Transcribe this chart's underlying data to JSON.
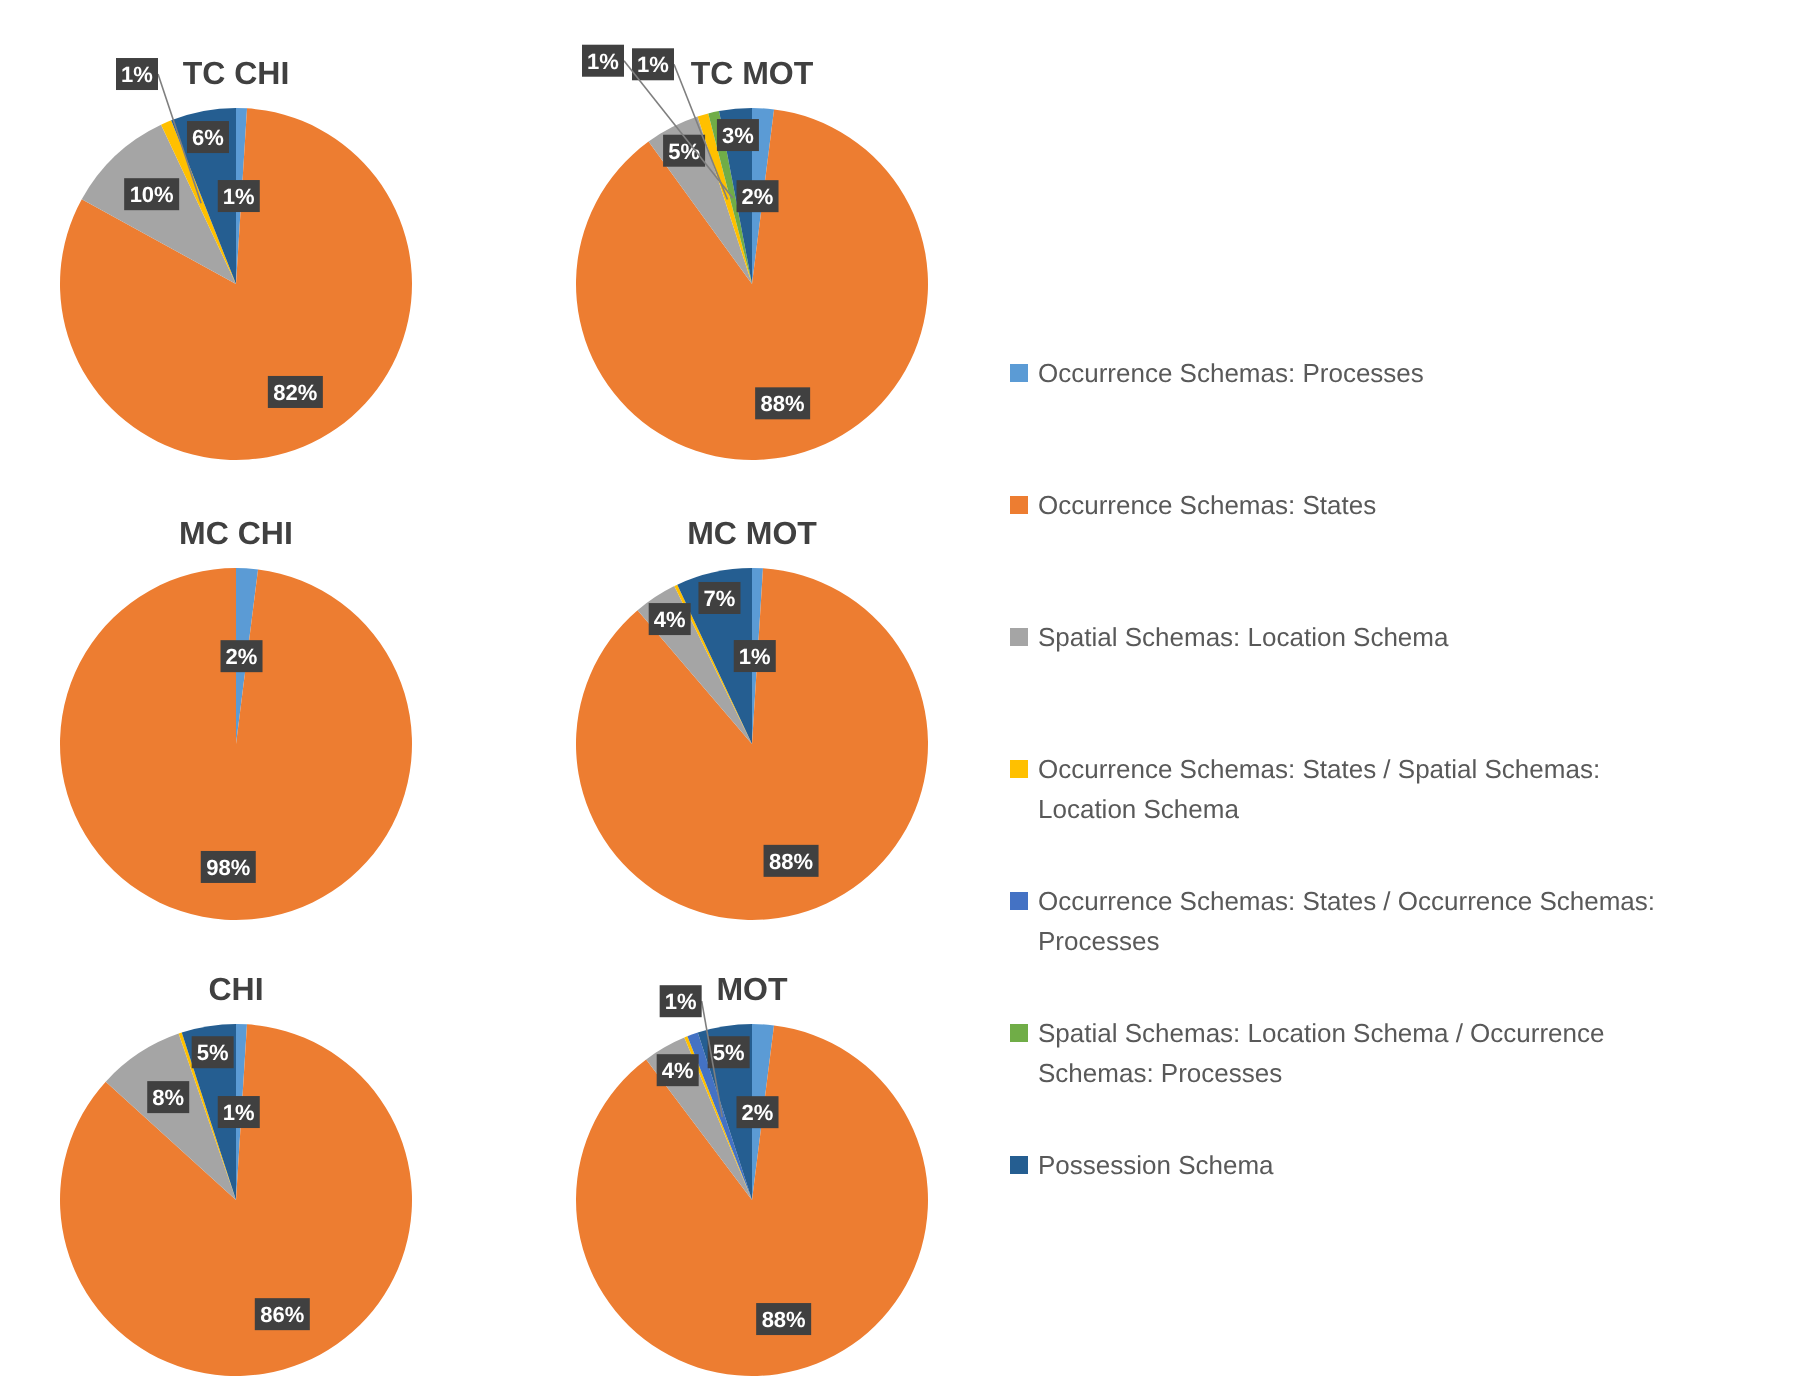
{
  "chart_data": [
    {
      "type": "pie",
      "title": "TC CHI",
      "legend": "right",
      "categories": [
        "Occurrence Schemas: Processes",
        "Occurrence Schemas: States",
        "Spatial Schemas: Location Schema",
        "Occurrence Schemas: States / Spatial Schemas: Location Schema",
        "Occurrence Schemas: States / Occurrence Schemas: Processes",
        "Spatial Schemas: Location Schema / Occurrence Schemas: Processes",
        "Possession Schema"
      ],
      "values": [
        1,
        82,
        10,
        1,
        0,
        0,
        6
      ],
      "value_labels": [
        "1%",
        "82%",
        "10%",
        "1%",
        null,
        null,
        "6%"
      ],
      "colors": [
        "#5b9bd5",
        "#ed7d31",
        "#a5a5a5",
        "#ffc000",
        "#4472c4",
        "#70ad47",
        "#255e91"
      ]
    },
    {
      "type": "pie",
      "title": "TC MOT",
      "categories": [
        null,
        null,
        null,
        null,
        null,
        null,
        null
      ],
      "values": [
        2,
        88,
        5,
        1,
        0,
        1,
        3
      ],
      "value_labels": [
        "2%",
        "88%",
        "5%",
        "1%",
        null,
        "1%",
        "3%"
      ],
      "colors": [
        "#5b9bd5",
        "#ed7d31",
        "#a5a5a5",
        "#ffc000",
        "#4472c4",
        "#70ad47",
        "#255e91"
      ]
    },
    {
      "type": "pie",
      "title": "MC CHI",
      "categories": [
        null,
        null,
        null,
        null,
        null,
        null,
        null
      ],
      "values": [
        2,
        98,
        0,
        0,
        0,
        0,
        0
      ],
      "value_labels": [
        "2%",
        "98%",
        null,
        null,
        null,
        null,
        null
      ],
      "colors": [
        "#5b9bd5",
        "#ed7d31",
        "#a5a5a5",
        "#ffc000",
        "#4472c4",
        "#70ad47",
        "#255e91"
      ]
    },
    {
      "type": "pie",
      "title": "MC MOT",
      "categories": [
        null,
        null,
        null,
        null,
        null,
        null,
        null
      ],
      "values": [
        1,
        88,
        4,
        0.3,
        0,
        0,
        7
      ],
      "value_labels": [
        "1%",
        "88%",
        "4%",
        null,
        null,
        null,
        "7%"
      ],
      "colors": [
        "#5b9bd5",
        "#ed7d31",
        "#a5a5a5",
        "#ffc000",
        "#4472c4",
        "#70ad47",
        "#255e91"
      ]
    },
    {
      "type": "pie",
      "title": "CHI",
      "categories": [
        null,
        null,
        null,
        null,
        null,
        null,
        null
      ],
      "values": [
        1,
        86,
        8,
        0.3,
        0,
        0,
        5
      ],
      "value_labels": [
        "1%",
        "86%",
        "8%",
        null,
        null,
        null,
        "5%"
      ],
      "colors": [
        "#5b9bd5",
        "#ed7d31",
        "#a5a5a5",
        "#ffc000",
        "#4472c4",
        "#70ad47",
        "#255e91"
      ]
    },
    {
      "type": "pie",
      "title": "MOT",
      "categories": [
        null,
        null,
        null,
        null,
        null,
        null,
        null
      ],
      "values": [
        2,
        88,
        4,
        0.3,
        1,
        0,
        5
      ],
      "value_labels": [
        "2%",
        "88%",
        "4%",
        null,
        "1%",
        null,
        "5%"
      ],
      "colors": [
        "#5b9bd5",
        "#ed7d31",
        "#a5a5a5",
        "#ffc000",
        "#4472c4",
        "#70ad47",
        "#255e91"
      ]
    }
  ]
}
